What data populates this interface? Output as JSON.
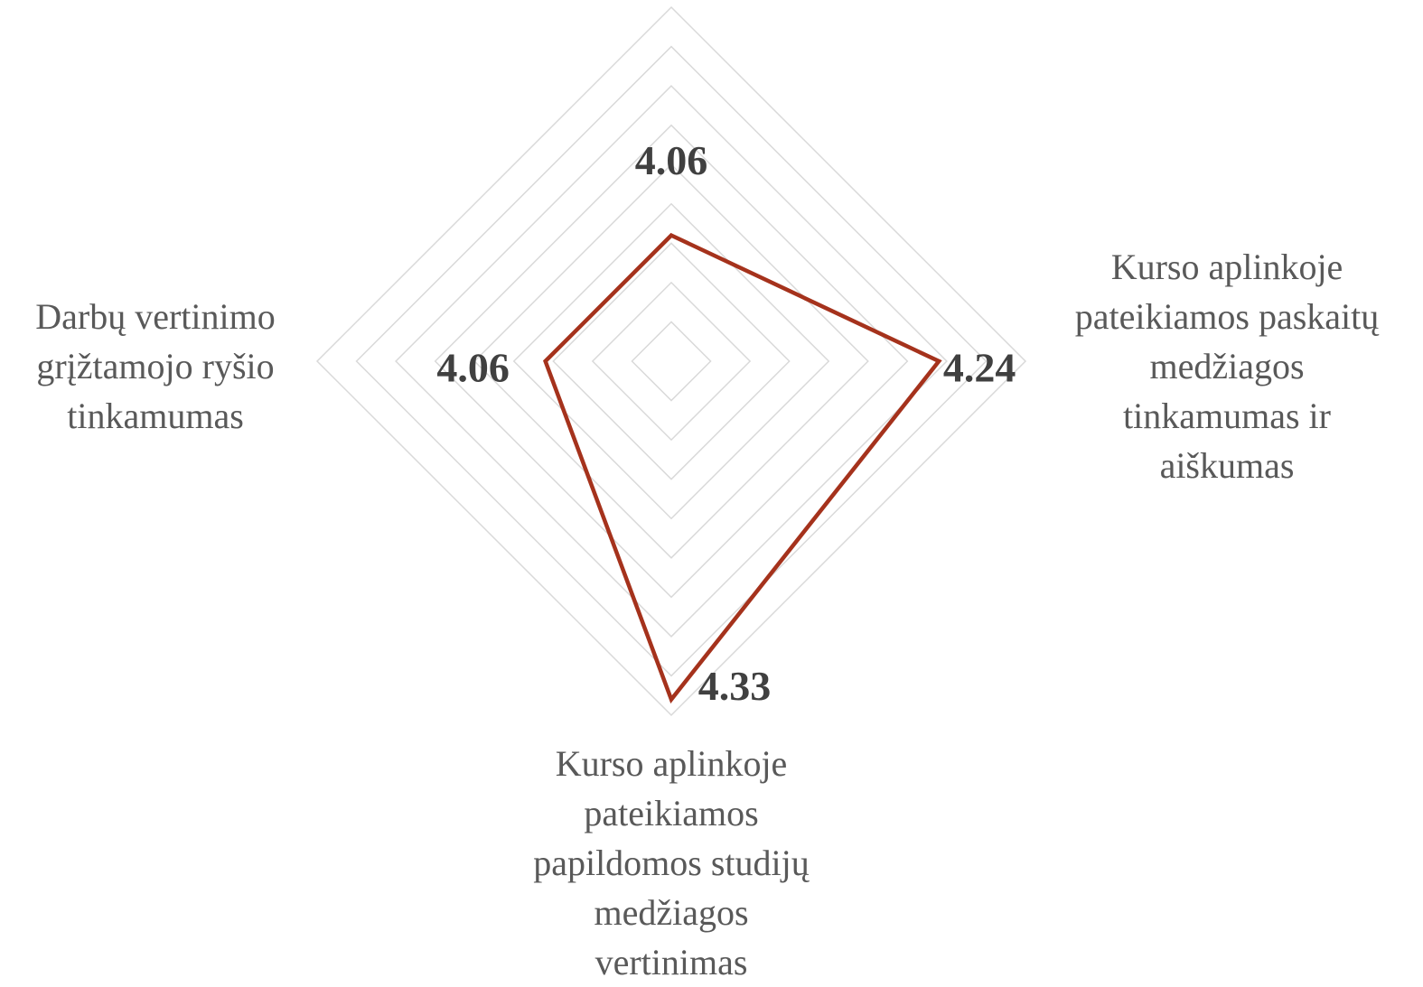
{
  "chart_data": {
    "type": "radar",
    "categories": [
      null,
      [
        "Kurso aplinkoje",
        "pateikiamos paskaitų",
        "medžiagos",
        "tinkamumas ir",
        "aiškumas"
      ],
      [
        "Kurso aplinkoje",
        "pateikiamos",
        "papildomos studijų",
        "medžiagos",
        "vertinimas"
      ],
      [
        "Darbų vertinimo",
        "grįžtamojo ryšio",
        "tinkamumas"
      ]
    ],
    "series": [
      {
        "color": "#a5321c",
        "values": [
          4.06,
          4.24,
          4.33,
          4.06
        ]
      }
    ],
    "rlim": [
      3.9,
      4.35
    ],
    "rticks": [
      3.95,
      4.0,
      4.05,
      4.1,
      4.15,
      4.2,
      4.25,
      4.3,
      4.35
    ],
    "grid": true
  }
}
